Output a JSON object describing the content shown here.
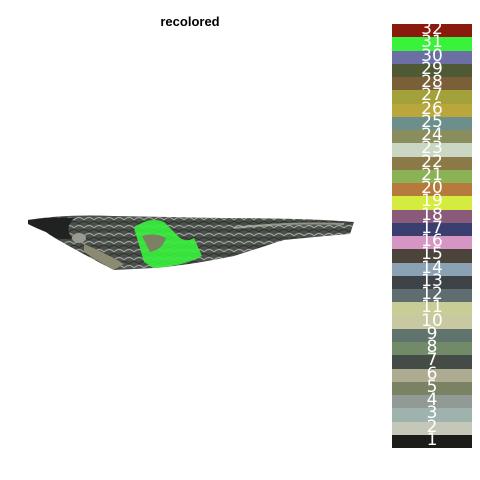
{
  "title": "recolored",
  "legend": {
    "labels": [
      "32",
      "31",
      "30",
      "29",
      "28",
      "27",
      "26",
      "25",
      "24",
      "23",
      "22",
      "21",
      "20",
      "19",
      "18",
      "17",
      "16",
      "15",
      "14",
      "13",
      "12",
      "11",
      "10",
      "9",
      "8",
      "7",
      "6",
      "5",
      "4",
      "3",
      "2",
      "1"
    ],
    "colors": [
      "#8b1a0e",
      "#39f23c",
      "#6c6fa3",
      "#4f5a35",
      "#7b5f38",
      "#a3a23a",
      "#b9a63d",
      "#6c8f8c",
      "#8a8d5e",
      "#c9d7c3",
      "#8b7a48",
      "#8bb254",
      "#b57a3c",
      "#d4ec3e",
      "#8a5a7b",
      "#3b3f6f",
      "#d696c4",
      "#4a443a",
      "#8aa2b4",
      "#3e4348",
      "#5f6d70",
      "#c8cc96",
      "#c8c9a3",
      "#60736c",
      "#718a68",
      "#454c47",
      "#adac92",
      "#7b8264",
      "#929a95",
      "#9eb2ae",
      "#c5c8b8",
      "#1c1c1a"
    ]
  }
}
